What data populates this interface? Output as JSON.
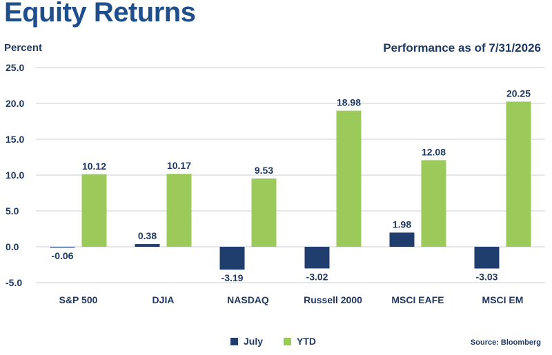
{
  "header": {
    "title": "Equity Returns",
    "performance_note": "Performance as of 7/31/2026",
    "source": "Source: Bloomberg"
  },
  "colors": {
    "july": "#1f3e6e",
    "ytd": "#9bc95a",
    "grid": "#c9cdd3",
    "text": "#1f3864"
  },
  "chart_data": {
    "type": "bar",
    "ylabel": "Percent",
    "ylim": [
      -5,
      25
    ],
    "yticks": [
      "25.0",
      "20.0",
      "15.0",
      "10.0",
      "5.0",
      "0.0",
      "-5.0"
    ],
    "ytick_values": [
      25,
      20,
      15,
      10,
      5,
      0,
      -5
    ],
    "grid": true,
    "legend_position": "bottom-center",
    "categories": [
      "S&P 500",
      "DJIA",
      "NASDAQ",
      "Russell 2000",
      "MSCI EAFE",
      "MSCI EM"
    ],
    "series": [
      {
        "name": "July",
        "values": [
          -0.06,
          0.38,
          -3.19,
          -3.02,
          1.98,
          -3.03
        ],
        "labels": [
          "-0.06",
          "0.38",
          "-3.19",
          "-3.02",
          "1.98",
          "-3.03"
        ]
      },
      {
        "name": "YTD",
        "values": [
          10.12,
          10.17,
          9.53,
          18.98,
          12.08,
          20.25
        ],
        "labels": [
          "10.12",
          "10.17",
          "9.53",
          "18.98",
          "12.08",
          "20.25"
        ]
      }
    ]
  }
}
